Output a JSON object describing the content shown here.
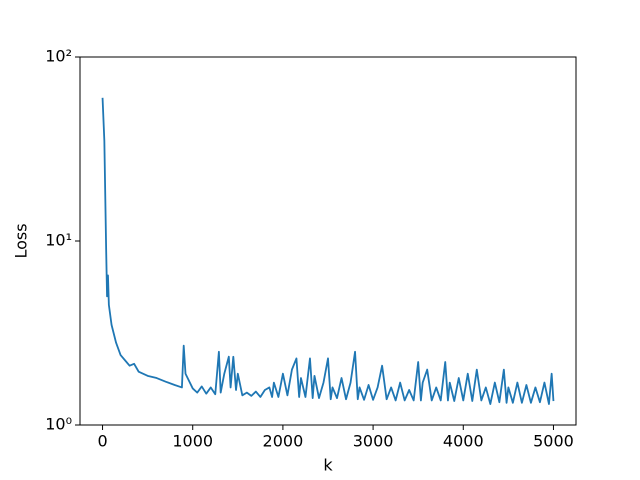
{
  "chart_data": {
    "type": "line",
    "xlabel": "k",
    "ylabel": "Loss",
    "log_y": true,
    "color": "#1f77b4",
    "xlim": [
      -250,
      5250
    ],
    "xticks": [
      0,
      1000,
      2000,
      3000,
      4000,
      5000
    ],
    "ylim": [
      1,
      100
    ],
    "yticks": [
      {
        "value": 1,
        "label": "10⁰"
      },
      {
        "value": 10,
        "label": "10¹"
      },
      {
        "value": 100,
        "label": "10²"
      }
    ],
    "x": [
      0,
      20,
      40,
      50,
      60,
      70,
      100,
      150,
      200,
      300,
      350,
      400,
      500,
      600,
      700,
      800,
      880,
      900,
      920,
      1000,
      1050,
      1100,
      1150,
      1200,
      1250,
      1290,
      1310,
      1350,
      1400,
      1420,
      1450,
      1480,
      1500,
      1550,
      1600,
      1650,
      1700,
      1750,
      1800,
      1850,
      1880,
      1900,
      1950,
      2000,
      2050,
      2100,
      2150,
      2180,
      2200,
      2250,
      2300,
      2330,
      2350,
      2400,
      2450,
      2500,
      2530,
      2550,
      2600,
      2650,
      2700,
      2750,
      2800,
      2830,
      2850,
      2900,
      2950,
      3000,
      3050,
      3100,
      3150,
      3200,
      3250,
      3300,
      3350,
      3400,
      3450,
      3500,
      3530,
      3550,
      3600,
      3650,
      3700,
      3750,
      3800,
      3830,
      3850,
      3900,
      3950,
      4000,
      4050,
      4100,
      4150,
      4200,
      4250,
      4300,
      4350,
      4400,
      4450,
      4480,
      4500,
      4550,
      4600,
      4650,
      4700,
      4750,
      4800,
      4850,
      4900,
      4950,
      4980,
      5000
    ],
    "values": [
      60,
      35,
      9,
      5,
      6.5,
      4.5,
      3.5,
      2.8,
      2.4,
      2.1,
      2.15,
      1.95,
      1.85,
      1.8,
      1.72,
      1.65,
      1.6,
      2.7,
      1.9,
      1.58,
      1.5,
      1.62,
      1.48,
      1.6,
      1.47,
      2.5,
      1.5,
      1.9,
      2.35,
      1.6,
      2.35,
      1.55,
      1.9,
      1.45,
      1.5,
      1.44,
      1.52,
      1.42,
      1.55,
      1.6,
      1.42,
      1.7,
      1.42,
      1.9,
      1.45,
      2.0,
      2.3,
      1.42,
      1.8,
      1.42,
      2.3,
      1.4,
      1.85,
      1.4,
      1.7,
      2.3,
      1.38,
      1.6,
      1.4,
      1.8,
      1.38,
      1.7,
      2.5,
      1.38,
      1.6,
      1.37,
      1.65,
      1.37,
      1.6,
      2.1,
      1.38,
      1.6,
      1.36,
      1.7,
      1.36,
      1.55,
      1.36,
      2.2,
      1.36,
      1.7,
      2.0,
      1.36,
      1.6,
      1.36,
      2.2,
      1.36,
      1.7,
      1.35,
      1.8,
      1.36,
      1.9,
      1.35,
      2.0,
      1.36,
      1.6,
      1.3,
      1.7,
      1.33,
      2.0,
      1.32,
      1.6,
      1.32,
      1.7,
      1.32,
      1.65,
      1.32,
      1.6,
      1.33,
      1.7,
      1.3,
      1.9,
      1.35
    ]
  }
}
